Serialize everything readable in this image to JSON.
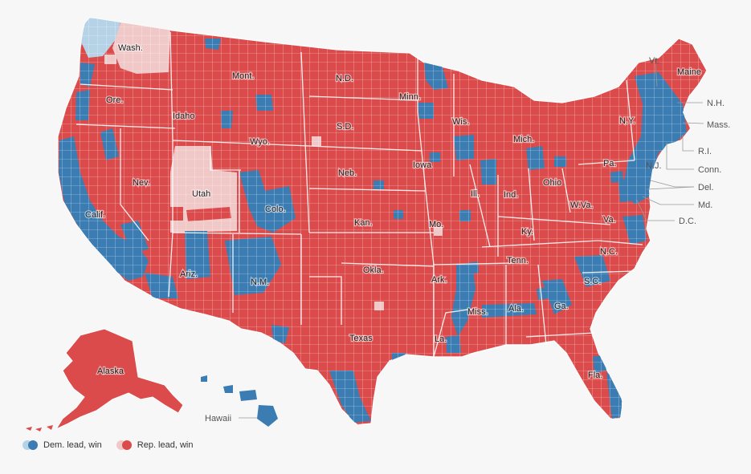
{
  "colors": {
    "dem_win": "#3b7db3",
    "dem_lead": "#b6d2e6",
    "rep_win": "#dc4b4b",
    "rep_lead": "#f0c8c8",
    "border": "#ffffff",
    "background": "#f7f7f7"
  },
  "states": {
    "wash": "Wash.",
    "ore": "Ore.",
    "calif": "Calif.",
    "idaho": "Idaho",
    "nev": "Nev.",
    "mont": "Mont.",
    "wyo": "Wyo.",
    "utah": "Utah",
    "colo": "Colo.",
    "ariz": "Ariz.",
    "nm": "N.M.",
    "nd": "N.D.",
    "sd": "S.D.",
    "neb": "Neb.",
    "kan": "Kan.",
    "okla": "Okla.",
    "texas": "Texas",
    "minn": "Minn.",
    "iowa": "Iowa",
    "mo": "Mo.",
    "ark": "Ark.",
    "la": "La.",
    "wis": "Wis.",
    "ill": "Ill.",
    "miss": "Miss.",
    "mich": "Mich.",
    "ind": "Ind.",
    "ky": "Ky.",
    "tenn": "Tenn.",
    "ala": "Ala.",
    "ohio": "Ohio",
    "ga": "Ga.",
    "fla": "Fla.",
    "sc": "S.C.",
    "nc": "N.C.",
    "va": "Va.",
    "wva": "W.Va.",
    "pa": "Pa.",
    "ny": "N.Y.",
    "maine": "Maine",
    "alaska": "Alaska"
  },
  "callouts": {
    "vt": "Vt.",
    "nh": "N.H.",
    "mass": "Mass.",
    "ri": "R.I.",
    "conn": "Conn.",
    "nj": "N.J.",
    "del": "Del.",
    "md": "Md.",
    "dc": "D.C.",
    "hawaii": "Hawaii"
  },
  "legend": {
    "dem": "Dem. lead, win",
    "rep": "Rep. lead, win"
  }
}
